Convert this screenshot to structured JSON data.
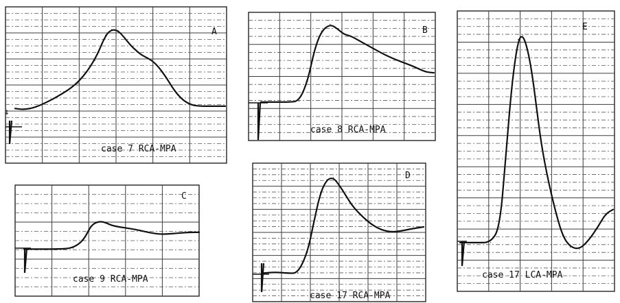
{
  "chart_data": [
    {
      "type": "line",
      "panel": "A",
      "caption": "case 7  RCA-MPA",
      "arrow_glyph": "↓",
      "x": [
        0.0,
        0.04,
        0.1,
        0.2,
        0.3,
        0.38,
        0.43,
        0.46,
        0.49,
        0.52,
        0.55,
        0.58,
        0.6,
        0.62,
        0.65,
        0.68,
        0.72,
        0.76,
        0.8,
        0.84,
        0.88,
        0.92,
        0.96,
        1.0
      ],
      "y": [
        0.28,
        0.27,
        0.29,
        0.38,
        0.5,
        0.7,
        0.92,
        0.97,
        0.96,
        0.9,
        0.83,
        0.78,
        0.75,
        0.73,
        0.7,
        0.65,
        0.55,
        0.43,
        0.35,
        0.31,
        0.3,
        0.3,
        0.3,
        0.3
      ]
    },
    {
      "type": "line",
      "panel": "B",
      "caption": "case 8  RCA-MPA",
      "x": [
        0.0,
        0.08,
        0.16,
        0.22,
        0.27,
        0.31,
        0.35,
        0.4,
        0.44,
        0.48,
        0.52,
        0.58,
        0.65,
        0.72,
        0.8,
        0.88,
        0.95,
        1.0
      ],
      "y": [
        0.05,
        0.05,
        0.05,
        0.06,
        0.3,
        0.68,
        0.9,
        0.98,
        0.93,
        0.86,
        0.84,
        0.77,
        0.69,
        0.61,
        0.54,
        0.48,
        0.41,
        0.4
      ]
    },
    {
      "type": "line",
      "panel": "C",
      "caption": "case 9  RCA-MPA",
      "x": [
        0.0,
        0.1,
        0.2,
        0.28,
        0.34,
        0.38,
        0.41,
        0.44,
        0.47,
        0.5,
        0.54,
        0.6,
        0.66,
        0.72,
        0.78,
        0.84,
        0.9,
        0.95,
        1.0
      ],
      "y": [
        0.12,
        0.12,
        0.12,
        0.14,
        0.3,
        0.58,
        0.66,
        0.68,
        0.65,
        0.6,
        0.57,
        0.54,
        0.5,
        0.45,
        0.42,
        0.43,
        0.45,
        0.46,
        0.46
      ]
    },
    {
      "type": "line",
      "panel": "D",
      "caption": "case 17  RCA-MPA",
      "x": [
        0.0,
        0.08,
        0.16,
        0.22,
        0.28,
        0.32,
        0.36,
        0.4,
        0.44,
        0.48,
        0.52,
        0.56,
        0.62,
        0.68,
        0.74,
        0.8,
        0.86,
        0.92,
        1.0
      ],
      "y": [
        0.05,
        0.06,
        0.05,
        0.05,
        0.25,
        0.55,
        0.83,
        0.96,
        0.98,
        0.9,
        0.8,
        0.7,
        0.6,
        0.52,
        0.47,
        0.45,
        0.46,
        0.48,
        0.5
      ]
    },
    {
      "type": "line",
      "panel": "E",
      "caption": "case 17  LCA-MPA",
      "x": [
        0.0,
        0.1,
        0.2,
        0.26,
        0.3,
        0.34,
        0.38,
        0.41,
        0.44,
        0.47,
        0.5,
        0.53,
        0.57,
        0.62,
        0.67,
        0.72,
        0.78,
        0.84,
        0.9,
        0.95,
        1.0
      ],
      "y": [
        0.05,
        0.05,
        0.05,
        0.12,
        0.45,
        0.78,
        0.97,
        0.99,
        0.93,
        0.82,
        0.66,
        0.5,
        0.35,
        0.2,
        0.08,
        0.03,
        0.02,
        0.06,
        0.12,
        0.18,
        0.2
      ]
    }
  ]
}
